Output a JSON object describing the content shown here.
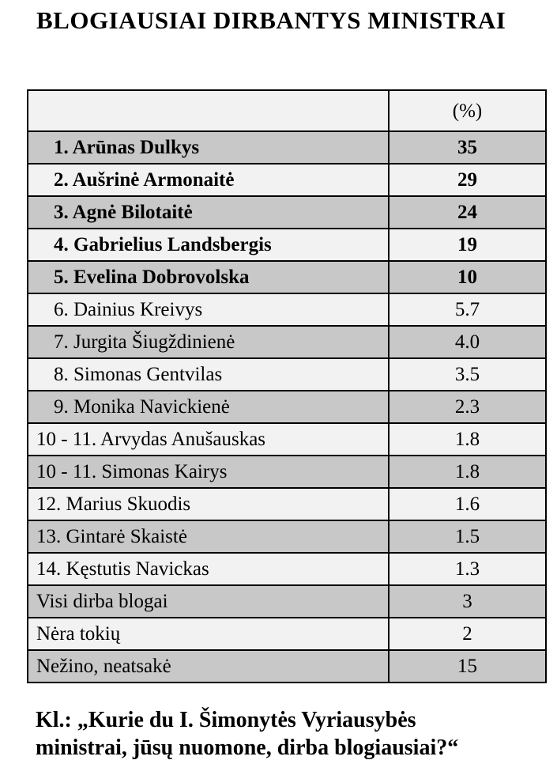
{
  "page": {
    "title": "BLOGIAUSIAI DIRBANTYS MINISTRAI"
  },
  "colors": {
    "row_gray": "#c8c8c8",
    "row_light": "#f2f2f2",
    "border": "#000000",
    "text": "#000000"
  },
  "table": {
    "header": {
      "name_col": "",
      "value_col": "(%)"
    },
    "rows": [
      {
        "label": "1. Arūnas Dulkys",
        "value": "35",
        "bold": true,
        "indent": true
      },
      {
        "label": "2. Aušrinė Armonaitė",
        "value": "29",
        "bold": true,
        "indent": true
      },
      {
        "label": "3. Agnė Bilotaitė",
        "value": "24",
        "bold": true,
        "indent": true
      },
      {
        "label": "4. Gabrielius Landsbergis",
        "value": "19",
        "bold": true,
        "indent": true
      },
      {
        "label": "5. Evelina Dobrovolska",
        "value": "10",
        "bold": true,
        "indent": true
      },
      {
        "label": "6. Dainius Kreivys",
        "value": "5.7",
        "bold": false,
        "indent": true
      },
      {
        "label": "7. Jurgita Šiugždinienė",
        "value": "4.0",
        "bold": false,
        "indent": true
      },
      {
        "label": "8. Simonas Gentvilas",
        "value": "3.5",
        "bold": false,
        "indent": true
      },
      {
        "label": "9. Monika Navickienė",
        "value": "2.3",
        "bold": false,
        "indent": true
      },
      {
        "label": "10 - 11. Arvydas Anušauskas",
        "value": "1.8",
        "bold": false,
        "indent": false
      },
      {
        "label": "10 - 11. Simonas Kairys",
        "value": "1.8",
        "bold": false,
        "indent": false
      },
      {
        "label": "12. Marius Skuodis",
        "value": "1.6",
        "bold": false,
        "indent": false
      },
      {
        "label": "13. Gintarė Skaistė",
        "value": "1.5",
        "bold": false,
        "indent": false
      },
      {
        "label": "14. Kęstutis Navickas",
        "value": "1.3",
        "bold": false,
        "indent": false
      },
      {
        "label": "Visi dirba blogai",
        "value": "3",
        "bold": false,
        "indent": false
      },
      {
        "label": "Nėra tokių",
        "value": "2",
        "bold": false,
        "indent": false
      },
      {
        "label": "Nežino, neatsakė",
        "value": "15",
        "bold": false,
        "indent": false
      }
    ]
  },
  "footer": {
    "line1": "Kl.: „Kurie du I. Šimonytės Vyriausybės",
    "line2": "ministrai, jūsų nuomone, dirba blogiausiai?“"
  }
}
